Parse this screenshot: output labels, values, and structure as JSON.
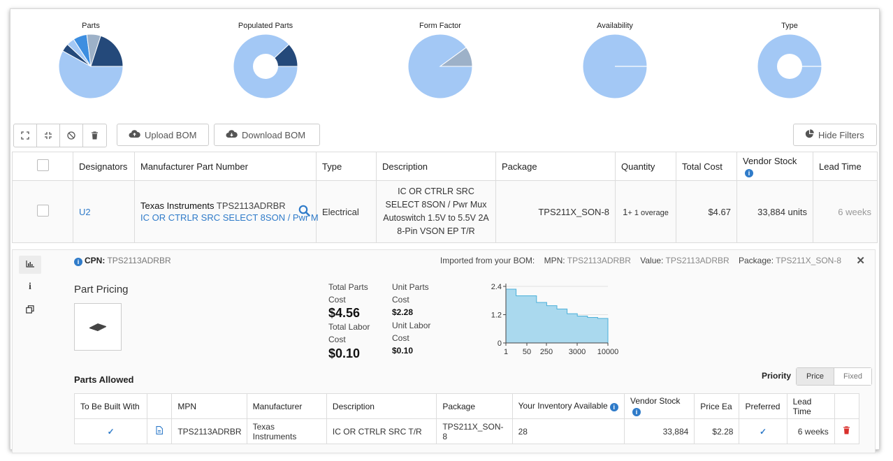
{
  "pies": [
    {
      "title": "Parts",
      "inner": 0,
      "slices": [
        {
          "value": 58,
          "color": "#a3c8f5"
        },
        {
          "value": 4,
          "color": "#24497a"
        },
        {
          "value": 4,
          "color": "#a3c8f5"
        },
        {
          "value": 7,
          "color": "#3d8ee0"
        },
        {
          "value": 7,
          "color": "#9db1c8"
        },
        {
          "value": 20,
          "color": "#24497a"
        }
      ]
    },
    {
      "title": "Populated Parts",
      "inner": 18,
      "slices": [
        {
          "value": 88,
          "color": "#a3c8f5"
        },
        {
          "value": 12,
          "color": "#24497a"
        }
      ]
    },
    {
      "title": "Form Factor",
      "inner": 0,
      "slices": [
        {
          "value": 90,
          "color": "#a3c8f5"
        },
        {
          "value": 10,
          "color": "#9db1c8"
        }
      ]
    },
    {
      "title": "Availability",
      "inner": 0,
      "slices": [
        {
          "value": 100,
          "color": "#a3c8f5"
        }
      ]
    },
    {
      "title": "Type",
      "inner": 18,
      "slices": [
        {
          "value": 100,
          "color": "#a3c8f5"
        }
      ]
    }
  ],
  "toolbar": {
    "upload_label": "Upload BOM",
    "download_label": "Download BOM",
    "hide_filters_label": "Hide Filters"
  },
  "table": {
    "headers": [
      "Designators",
      "Manufacturer Part Number",
      "Type",
      "Description",
      "Package",
      "Quantity",
      "Total Cost",
      "Vendor Stock",
      "Lead Time"
    ],
    "row": {
      "designator": "U2",
      "manufacturer": "Texas Instruments",
      "mpn": "TPS2113ADRBR",
      "mpn_desc": "IC OR CTRLR SRC SELECT 8SON / Pwr M",
      "type": "Electrical",
      "description": "IC OR CTRLR SRC SELECT 8SON / Pwr Mux Autoswitch 1.5V to 5.5V 2A 8-Pin VSON EP T/R",
      "package": "TPS211X_SON-8",
      "quantity": "1",
      "overage": "+ 1 overage",
      "total_cost": "$4.67",
      "vendor_stock": "33,884 units",
      "lead_time": "6 weeks"
    }
  },
  "detail": {
    "cpn_label": "CPN:",
    "cpn_value": "TPS2113ADRBR",
    "imported_label": "Imported from your BOM:",
    "mpn_label": "MPN:",
    "mpn_value": "TPS2113ADRBR",
    "value_label": "Value:",
    "value_value": "TPS2113ADRBR",
    "package_label": "Package:",
    "package_value": "TPS211X_SON-8",
    "pricing_title": "Part Pricing",
    "total_parts_cost_label": "Total Parts Cost",
    "total_parts_cost": "$4.56",
    "total_labor_cost_label": "Total Labor Cost",
    "total_labor_cost": "$0.10",
    "unit_parts_cost_label": "Unit Parts Cost",
    "unit_parts_cost": "$2.28",
    "unit_labor_cost_label": "Unit Labor Cost",
    "unit_labor_cost": "$0.10",
    "parts_allowed_title": "Parts Allowed",
    "priority_label": "Priority",
    "priority_options": [
      "Price",
      "Fixed"
    ],
    "sub_headers": [
      "To Be Built With",
      "",
      "MPN",
      "Manufacturer",
      "Description",
      "Package",
      "Your Inventory Available",
      "Vendor Stock",
      "Price Ea",
      "Preferred",
      "Lead Time",
      ""
    ],
    "sub_row": {
      "mpn": "TPS2113ADRBR",
      "manufacturer": "Texas Instruments",
      "description": "IC OR CTRLR SRC  T/R",
      "package": "TPS211X_SON-8",
      "inventory": "28",
      "vendor_stock": "33,884",
      "price": "$2.28",
      "lead_time": "6 weeks"
    }
  },
  "chart_data": {
    "type": "area",
    "x_ticks": [
      "1",
      "50",
      "250",
      "3000",
      "10000"
    ],
    "y_ticks": [
      "0",
      "1.2",
      "2.4"
    ],
    "ylim": [
      0,
      2.4
    ],
    "step_values": [
      2.28,
      2.0,
      2.0,
      1.72,
      1.58,
      1.44,
      1.24,
      1.14,
      1.08,
      1.04
    ],
    "fill_color": "#aad9ee",
    "line_color": "#4ab0d9"
  }
}
